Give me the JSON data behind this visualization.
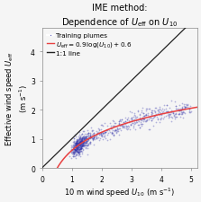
{
  "title_line1": "IME method:",
  "title_line2": "Dependence of $U_\\mathrm{eff}$ on $U_{10}$",
  "xlabel": "10 m wind speed $U_{10}$ (m s$^{-1}$)",
  "ylabel": "Effective wind speed $U_\\mathrm{eff}$\n(m s$^{-1}$)",
  "xlim": [
    0,
    5.2
  ],
  "ylim": [
    0,
    4.8
  ],
  "xticks": [
    0,
    1,
    2,
    3,
    4,
    5
  ],
  "yticks": [
    0,
    1,
    2,
    3,
    4
  ],
  "scatter_color": "#3333aa",
  "scatter_alpha": 0.35,
  "scatter_size": 1.5,
  "fit_color": "#e84040",
  "line11_color": "#222222",
  "legend_labels": [
    "Training plumes",
    "$U_\\mathrm{eff} = 0.9\\,\\log(U_{10}) + 0.6$",
    "1:1 line"
  ],
  "random_seed": 42,
  "n_points": 900,
  "background_color": "#f5f5f5",
  "title_fontsize": 7.0,
  "label_fontsize": 6.0,
  "tick_fontsize": 5.5,
  "legend_fontsize": 5.2
}
